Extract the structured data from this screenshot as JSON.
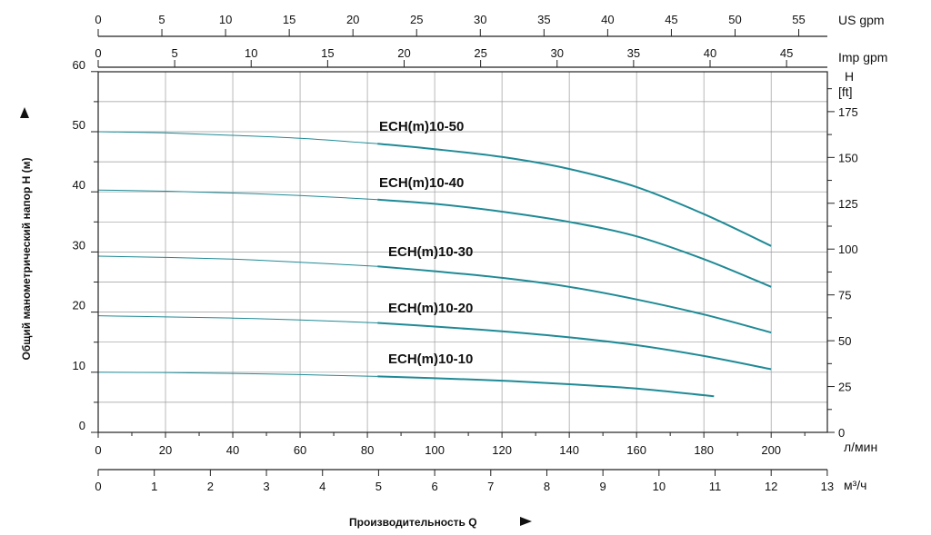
{
  "chart_data": {
    "type": "line",
    "title": "",
    "xlabel": "Производительность Q",
    "ylabel": "Общий манометрический напор H (м)",
    "xlim": [
      0,
      217
    ],
    "ylim": [
      0,
      60
    ],
    "grid": true,
    "x_ticks": [
      0,
      20,
      40,
      60,
      80,
      100,
      120,
      140,
      160,
      180,
      200
    ],
    "y_ticks": [
      0,
      10,
      20,
      30,
      40,
      50,
      60
    ],
    "x_unit": "л/мин",
    "secondary_axes": {
      "m3h": {
        "unit": "м³/ч",
        "ticks": [
          0,
          1,
          2,
          3,
          4,
          5,
          6,
          7,
          8,
          9,
          10,
          11,
          12,
          13
        ]
      },
      "us_gpm": {
        "unit": "US gpm",
        "ticks": [
          0,
          5,
          10,
          15,
          20,
          25,
          30,
          35,
          40,
          45,
          50,
          55
        ]
      },
      "imp_gpm": {
        "unit": "Imp gpm",
        "ticks": [
          0,
          5,
          10,
          15,
          20,
          25,
          30,
          35,
          40,
          45
        ]
      },
      "ft": {
        "unit_top": "H",
        "unit": "[ft]",
        "ticks": [
          0,
          25,
          50,
          75,
          100,
          125,
          150,
          175
        ]
      }
    },
    "series": [
      {
        "name": "ECH(m)10-50",
        "x": [
          0,
          20,
          40,
          60,
          83,
          100,
          120,
          140,
          160,
          180,
          200
        ],
        "values": [
          50,
          49.8,
          49.4,
          48.9,
          48.0,
          47.1,
          45.8,
          43.8,
          40.8,
          36.3,
          31.0
        ]
      },
      {
        "name": "ECH(m)10-40",
        "x": [
          0,
          20,
          40,
          60,
          83,
          100,
          120,
          140,
          160,
          180,
          200
        ],
        "values": [
          40.3,
          40.1,
          39.8,
          39.4,
          38.7,
          38.0,
          36.7,
          35.0,
          32.6,
          28.8,
          24.2
        ]
      },
      {
        "name": "ECH(m)10-30",
        "x": [
          0,
          20,
          40,
          60,
          83,
          100,
          120,
          140,
          160,
          180,
          200
        ],
        "values": [
          29.3,
          29.1,
          28.8,
          28.3,
          27.6,
          26.8,
          25.7,
          24.2,
          22.1,
          19.6,
          16.6
        ]
      },
      {
        "name": "ECH(m)10-20",
        "x": [
          0,
          20,
          40,
          60,
          83,
          100,
          120,
          140,
          160,
          180,
          200
        ],
        "values": [
          19.4,
          19.2,
          19.0,
          18.7,
          18.2,
          17.6,
          16.8,
          15.8,
          14.5,
          12.7,
          10.5
        ]
      },
      {
        "name": "ECH(m)10-10",
        "x": [
          0,
          20,
          40,
          60,
          83,
          100,
          120,
          140,
          160,
          183
        ],
        "values": [
          10.0,
          9.95,
          9.8,
          9.6,
          9.3,
          9.0,
          8.6,
          8.0,
          7.3,
          6.0
        ]
      }
    ],
    "colors": {
      "line": "#1f8a96",
      "axis": "#222222",
      "grid": "#9a9a9a"
    }
  }
}
